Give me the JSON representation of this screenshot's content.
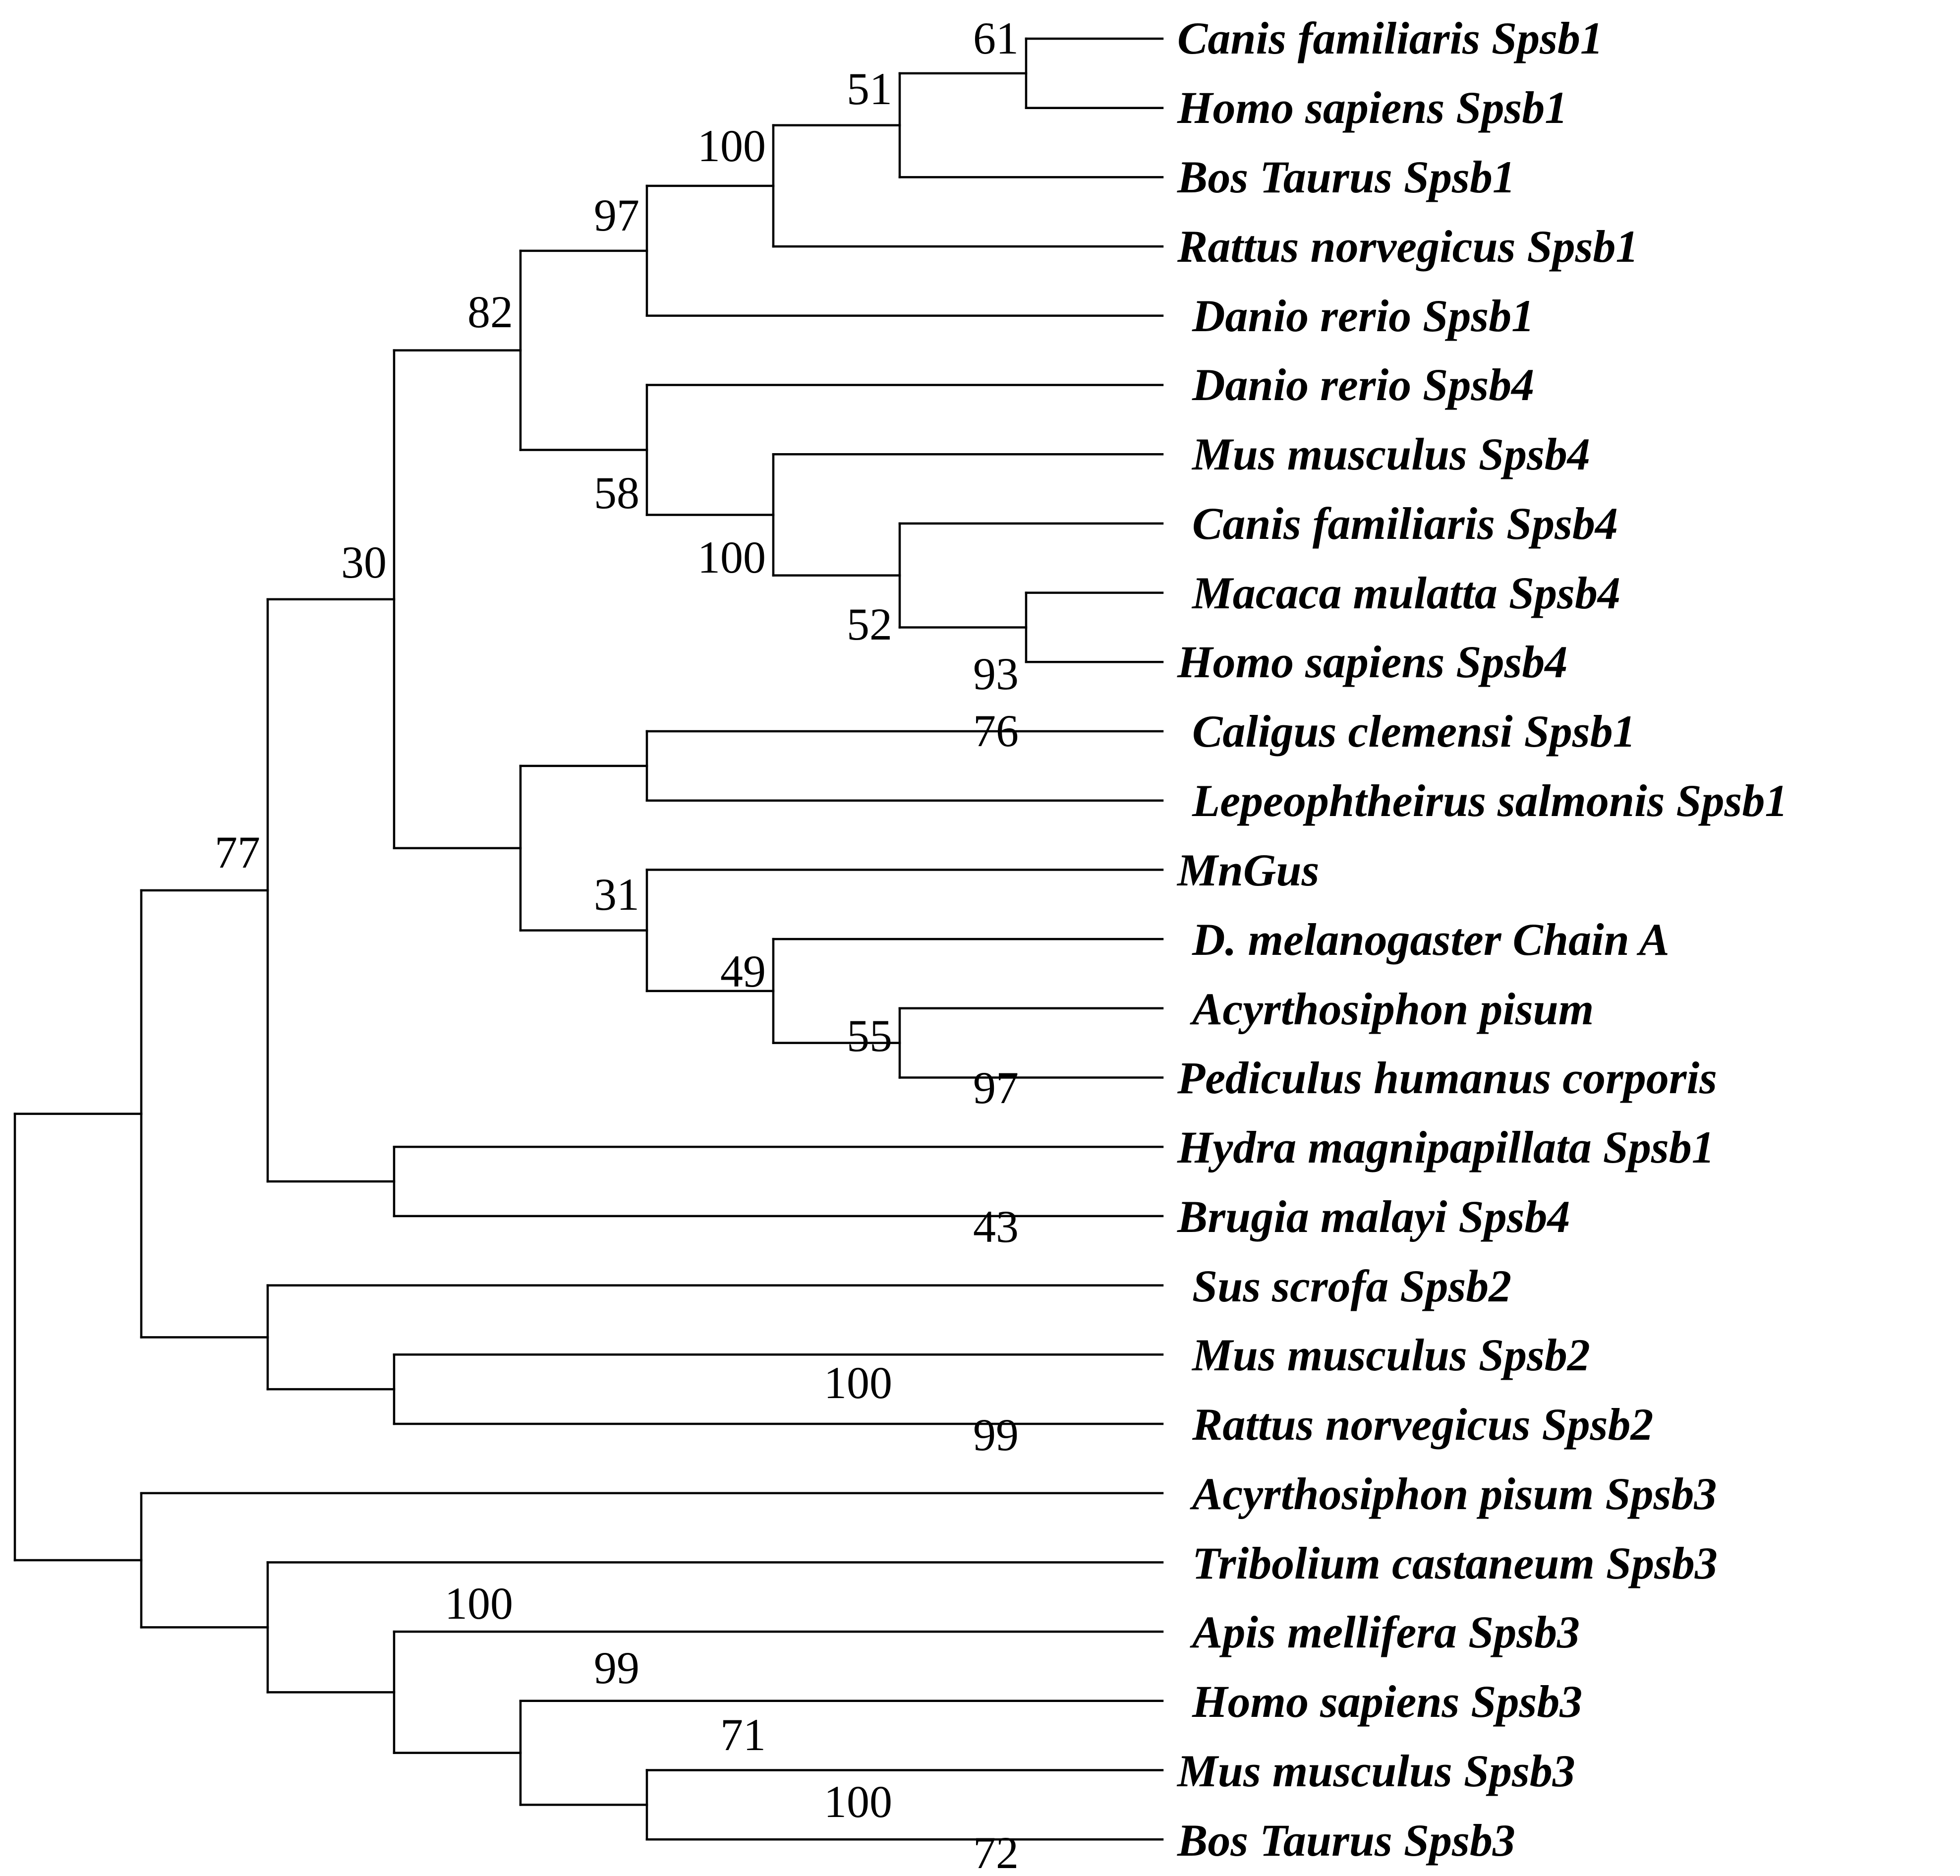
{
  "tree": {
    "taxa": [
      "Canis familiaris  Spsb1",
      "Homo sapiens Spsb1",
      "Bos Taurus Spsb1",
      "Rattus norvegicus Spsb1",
      "Danio rerio Spsb1",
      "Danio rerio Spsb4",
      "Mus musculus Spsb4",
      "Canis familiaris Spsb4",
      "Macaca mulatta Spsb4",
      "Homo sapiens Spsb4",
      "Caligus clemensi Spsb1",
      "Lepeophtheirus salmonis Spsb1",
      "MnGus",
      "D. melanogaster Chain A",
      "Acyrthosiphon pisum",
      "Pediculus humanus corporis",
      "Hydra magnipapillata Spsb1",
      "Brugia malayi Spsb4",
      "Sus scrofa Spsb2",
      "Mus musculus Spsb2",
      "Rattus norvegicus Spsb2",
      "Acyrthosiphon pisum Spsb3",
      "Tribolium castaneum Spsb3",
      "Apis mellifera Spsb3",
      "Homo sapiens Spsb3",
      "Mus musculus Spsb3",
      "Bos Taurus Spsb3"
    ],
    "bootstrap": [
      "61",
      "51",
      "100",
      "97",
      "82",
      "58",
      "100",
      "52",
      "93",
      "76",
      "31",
      "49",
      "55",
      "97",
      "30",
      "43",
      "77",
      "100",
      "99",
      "100",
      "99",
      "71",
      "100",
      "72"
    ],
    "line_color": "#000000"
  }
}
